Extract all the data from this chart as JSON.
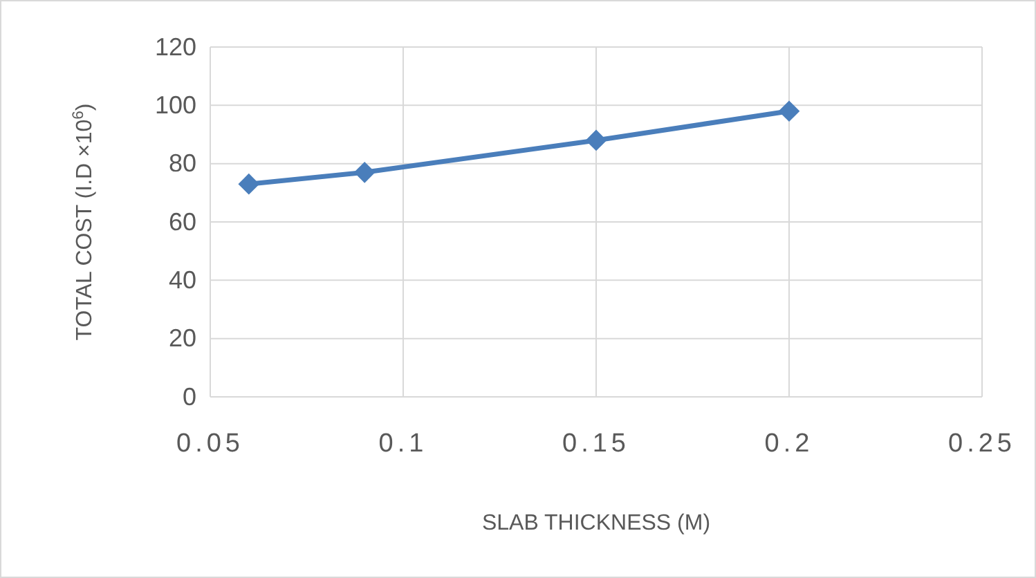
{
  "chart_data": {
    "type": "line",
    "xlabel": "SLAB THICKNESS (M)",
    "ylabel": "TOTAL COST (I.D ×10$^{6}$)",
    "x": [
      0.06,
      0.09,
      0.15,
      0.2
    ],
    "series": [
      {
        "color": "#4a7ebb",
        "values": [
          73,
          77,
          88,
          98
        ]
      }
    ],
    "xlim": [
      0.05,
      0.25
    ],
    "xticks": [
      0.05,
      0.1,
      0.15,
      0.2,
      0.25
    ],
    "ylim": [
      0,
      120
    ],
    "yticks": [
      0,
      20,
      40,
      60,
      80,
      100,
      120
    ],
    "grid": true,
    "marker": "diamond",
    "line_style": "solid"
  }
}
